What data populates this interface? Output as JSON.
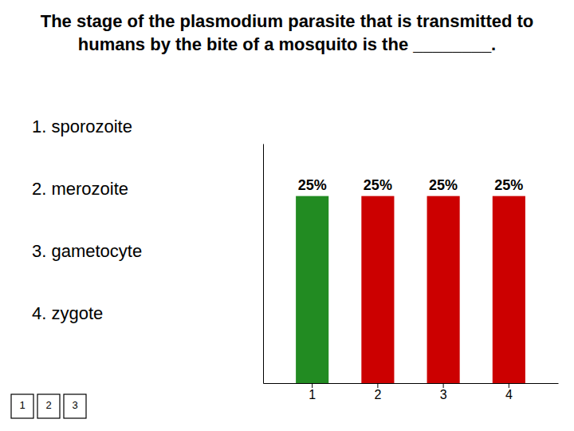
{
  "chart_data": {
    "type": "bar",
    "title": "The stage of the plasmodium parasite that is transmitted to humans by the bite of a mosquito is the ________.",
    "categories": [
      "1",
      "2",
      "3",
      "4"
    ],
    "values": [
      25,
      25,
      25,
      25
    ],
    "value_labels": [
      "25%",
      "25%",
      "25%",
      "25%"
    ],
    "colors": [
      "#228B22",
      "#CC0000",
      "#CC0000",
      "#CC0000"
    ],
    "ylim": [
      0,
      32
    ],
    "yticks": [],
    "grid": false,
    "data_labels": true,
    "tick_labels": "x",
    "annotations": [
      [
        "1. sporozoite",
        "2. merozoite",
        "3. gametocyte",
        "4. zygote"
      ],
      [
        "1",
        "2",
        "3"
      ]
    ]
  }
}
